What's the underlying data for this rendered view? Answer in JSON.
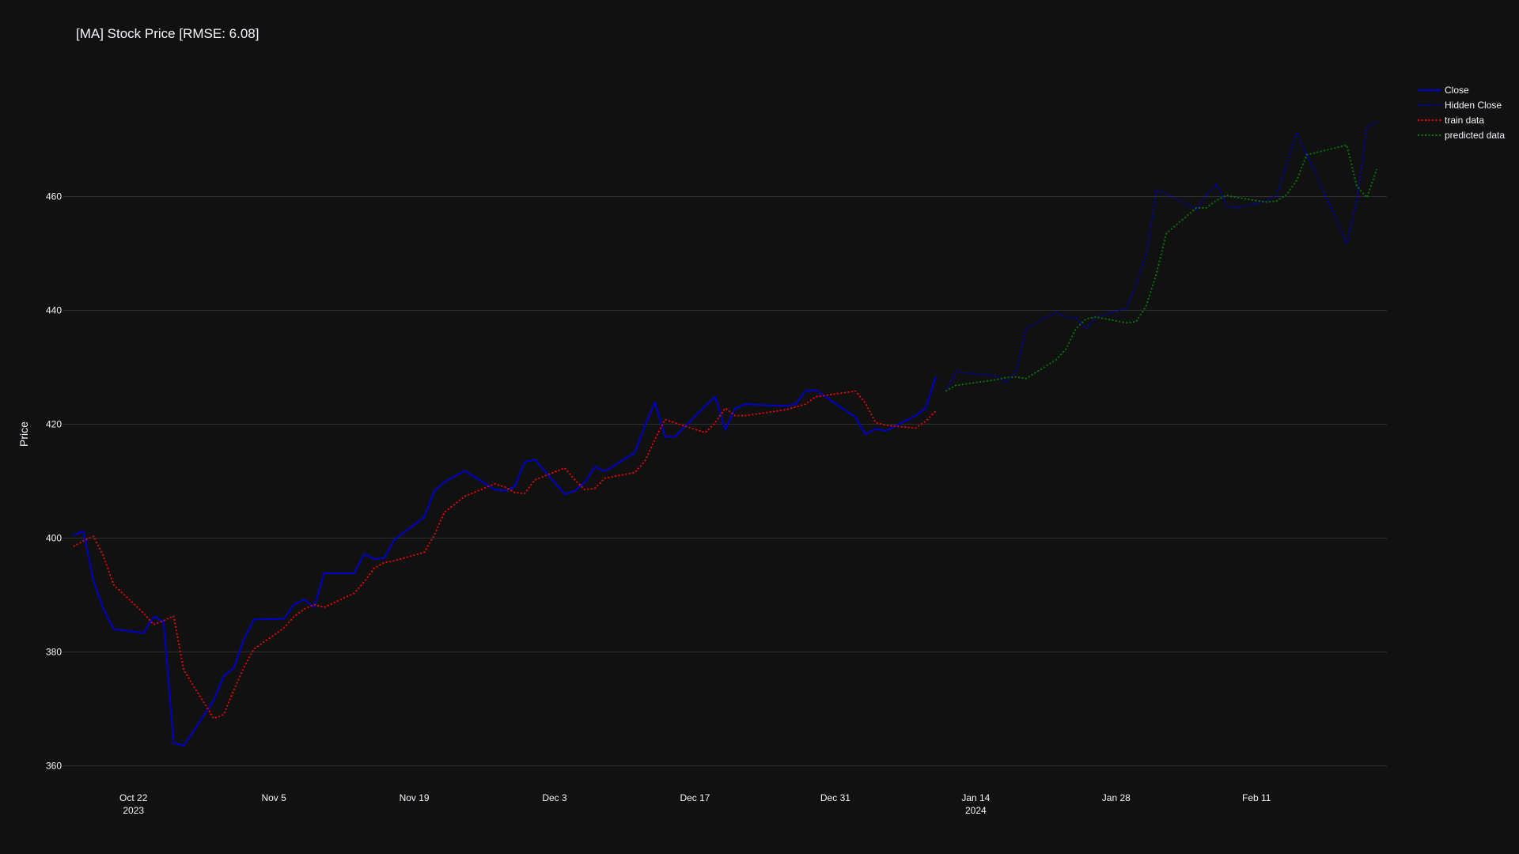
{
  "chart_data": {
    "type": "line",
    "title": "[MA] Stock Price [RMSE: 6.08]",
    "xlabel": "",
    "ylabel": "Price",
    "ylim": [
      357,
      482
    ],
    "xlim": [
      "2023-10-15",
      "2024-02-24"
    ],
    "grid": true,
    "legend_position": "top-right",
    "y_ticks": [
      360,
      380,
      400,
      420,
      440,
      460
    ],
    "x_ticks": [
      {
        "date": "2023-10-22",
        "label": "Oct 22",
        "sublabel": "2023"
      },
      {
        "date": "2023-11-05",
        "label": "Nov 5",
        "sublabel": ""
      },
      {
        "date": "2023-11-19",
        "label": "Nov 19",
        "sublabel": ""
      },
      {
        "date": "2023-12-03",
        "label": "Dec 3",
        "sublabel": ""
      },
      {
        "date": "2023-12-17",
        "label": "Dec 17",
        "sublabel": ""
      },
      {
        "date": "2023-12-31",
        "label": "Dec 31",
        "sublabel": ""
      },
      {
        "date": "2024-01-14",
        "label": "Jan 14",
        "sublabel": "2024"
      },
      {
        "date": "2024-01-28",
        "label": "Jan 28",
        "sublabel": ""
      },
      {
        "date": "2024-02-11",
        "label": "Feb 11",
        "sublabel": ""
      }
    ],
    "series": [
      {
        "name": "Close",
        "color": "#0000cc",
        "dash": "solid",
        "points": [
          [
            "2023-10-16",
            400.5
          ],
          [
            "2023-10-17",
            401.2
          ],
          [
            "2023-10-18",
            392.5
          ],
          [
            "2023-10-19",
            387.5
          ],
          [
            "2023-10-20",
            384.0
          ],
          [
            "2023-10-23",
            383.3
          ],
          [
            "2023-10-24",
            386.2
          ],
          [
            "2023-10-25",
            385.3
          ],
          [
            "2023-10-26",
            364.0
          ],
          [
            "2023-10-27",
            363.5
          ],
          [
            "2023-10-30",
            371.5
          ],
          [
            "2023-10-31",
            375.8
          ],
          [
            "2023-11-01",
            377.2
          ],
          [
            "2023-11-02",
            382.2
          ],
          [
            "2023-11-03",
            385.7
          ],
          [
            "2023-11-06",
            385.8
          ],
          [
            "2023-11-07",
            388.3
          ],
          [
            "2023-11-08",
            389.2
          ],
          [
            "2023-11-09",
            387.8
          ],
          [
            "2023-11-10",
            393.8
          ],
          [
            "2023-11-13",
            393.8
          ],
          [
            "2023-11-14",
            397.2
          ],
          [
            "2023-11-15",
            396.3
          ],
          [
            "2023-11-16",
            396.5
          ],
          [
            "2023-11-17",
            399.7
          ],
          [
            "2023-11-20",
            403.7
          ],
          [
            "2023-11-21",
            408.3
          ],
          [
            "2023-11-22",
            409.8
          ],
          [
            "2023-11-24",
            411.8
          ],
          [
            "2023-11-27",
            408.5
          ],
          [
            "2023-11-28",
            408.3
          ],
          [
            "2023-11-29",
            409.0
          ],
          [
            "2023-11-30",
            413.3
          ],
          [
            "2023-12-01",
            413.8
          ],
          [
            "2023-12-04",
            407.7
          ],
          [
            "2023-12-05",
            408.3
          ],
          [
            "2023-12-06",
            409.8
          ],
          [
            "2023-12-07",
            412.5
          ],
          [
            "2023-12-08",
            411.7
          ],
          [
            "2023-12-11",
            415.0
          ],
          [
            "2023-12-12",
            419.8
          ],
          [
            "2023-12-13",
            423.8
          ],
          [
            "2023-12-14",
            417.8
          ],
          [
            "2023-12-15",
            417.8
          ],
          [
            "2023-12-18",
            423.2
          ],
          [
            "2023-12-19",
            424.8
          ],
          [
            "2023-12-20",
            419.0
          ],
          [
            "2023-12-21",
            422.8
          ],
          [
            "2023-12-22",
            423.5
          ],
          [
            "2023-12-26",
            423.2
          ],
          [
            "2023-12-27",
            423.5
          ],
          [
            "2023-12-28",
            425.8
          ],
          [
            "2023-12-29",
            426.0
          ],
          [
            "2024-01-02",
            421.2
          ],
          [
            "2024-01-03",
            418.2
          ],
          [
            "2024-01-04",
            419.2
          ],
          [
            "2024-01-05",
            418.8
          ],
          [
            "2024-01-08",
            421.5
          ],
          [
            "2024-01-09",
            422.8
          ],
          [
            "2024-01-10",
            428.3
          ]
        ]
      },
      {
        "name": "Hidden Close",
        "color": "#0000cc",
        "dash": "dot",
        "points": [
          [
            "2024-01-11",
            425.8
          ],
          [
            "2024-01-12",
            429.2
          ],
          [
            "2024-01-16",
            428.5
          ],
          [
            "2024-01-17",
            427.3
          ],
          [
            "2024-01-18",
            429.2
          ],
          [
            "2024-01-19",
            436.8
          ],
          [
            "2024-01-22",
            439.7
          ],
          [
            "2024-01-23",
            438.8
          ],
          [
            "2024-01-24",
            438.6
          ],
          [
            "2024-01-25",
            436.8
          ],
          [
            "2024-01-26",
            438.8
          ],
          [
            "2024-01-29",
            440.3
          ],
          [
            "2024-01-30",
            444.7
          ],
          [
            "2024-01-31",
            449.8
          ],
          [
            "2024-02-01",
            461.2
          ],
          [
            "2024-02-02",
            460.5
          ],
          [
            "2024-02-05",
            457.7
          ],
          [
            "2024-02-06",
            460.3
          ],
          [
            "2024-02-07",
            462.2
          ],
          [
            "2024-02-08",
            458.3
          ],
          [
            "2024-02-09",
            458.0
          ],
          [
            "2024-02-12",
            459.2
          ],
          [
            "2024-02-13",
            460.3
          ],
          [
            "2024-02-14",
            465.7
          ],
          [
            "2024-02-15",
            471.3
          ],
          [
            "2024-02-16",
            467.3
          ],
          [
            "2024-02-20",
            451.8
          ],
          [
            "2024-02-21",
            459.3
          ],
          [
            "2024-02-22",
            472.2
          ],
          [
            "2024-02-23",
            473.2
          ]
        ]
      },
      {
        "name": "train data",
        "color": "#ff0000",
        "dash": "dot",
        "points": [
          [
            "2023-10-16",
            398.5
          ],
          [
            "2023-10-17",
            399.5
          ],
          [
            "2023-10-18",
            400.3
          ],
          [
            "2023-10-19",
            396.8
          ],
          [
            "2023-10-20",
            391.8
          ],
          [
            "2023-10-23",
            386.8
          ],
          [
            "2023-10-24",
            384.8
          ],
          [
            "2023-10-25",
            385.5
          ],
          [
            "2023-10-26",
            386.3
          ],
          [
            "2023-10-27",
            376.8
          ],
          [
            "2023-10-30",
            368.3
          ],
          [
            "2023-10-31",
            369.0
          ],
          [
            "2023-11-01",
            373.3
          ],
          [
            "2023-11-02",
            377.2
          ],
          [
            "2023-11-03",
            380.5
          ],
          [
            "2023-11-06",
            384.2
          ],
          [
            "2023-11-07",
            386.2
          ],
          [
            "2023-11-08",
            387.5
          ],
          [
            "2023-11-09",
            388.3
          ],
          [
            "2023-11-10",
            387.8
          ],
          [
            "2023-11-13",
            390.3
          ],
          [
            "2023-11-14",
            392.3
          ],
          [
            "2023-11-15",
            394.7
          ],
          [
            "2023-11-16",
            395.7
          ],
          [
            "2023-11-17",
            396.0
          ],
          [
            "2023-11-20",
            397.5
          ],
          [
            "2023-11-21",
            400.5
          ],
          [
            "2023-11-22",
            404.5
          ],
          [
            "2023-11-24",
            407.3
          ],
          [
            "2023-11-27",
            409.5
          ],
          [
            "2023-11-28",
            409.0
          ],
          [
            "2023-11-29",
            408.0
          ],
          [
            "2023-11-30",
            407.8
          ],
          [
            "2023-12-01",
            410.2
          ],
          [
            "2023-12-04",
            412.3
          ],
          [
            "2023-12-05",
            410.2
          ],
          [
            "2023-12-06",
            408.5
          ],
          [
            "2023-12-07",
            408.7
          ],
          [
            "2023-12-08",
            410.5
          ],
          [
            "2023-12-11",
            411.5
          ],
          [
            "2023-12-12",
            413.5
          ],
          [
            "2023-12-13",
            417.3
          ],
          [
            "2023-12-14",
            420.8
          ],
          [
            "2023-12-18",
            418.5
          ],
          [
            "2023-12-19",
            420.2
          ],
          [
            "2023-12-20",
            422.8
          ],
          [
            "2023-12-21",
            421.5
          ],
          [
            "2023-12-22",
            421.5
          ],
          [
            "2023-12-26",
            422.5
          ],
          [
            "2023-12-27",
            423.0
          ],
          [
            "2023-12-28",
            423.5
          ],
          [
            "2023-12-29",
            424.8
          ],
          [
            "2024-01-02",
            425.8
          ],
          [
            "2024-01-03",
            423.7
          ],
          [
            "2024-01-04",
            420.3
          ],
          [
            "2024-01-05",
            419.8
          ],
          [
            "2024-01-08",
            419.3
          ],
          [
            "2024-01-09",
            420.5
          ],
          [
            "2024-01-10",
            422.3
          ]
        ]
      },
      {
        "name": "predicted data",
        "color": "#008000",
        "dash": "dot",
        "points": [
          [
            "2024-01-11",
            425.8
          ],
          [
            "2024-01-12",
            426.8
          ],
          [
            "2024-01-16",
            427.8
          ],
          [
            "2024-01-17",
            428.2
          ],
          [
            "2024-01-18",
            428.3
          ],
          [
            "2024-01-19",
            428.0
          ],
          [
            "2024-01-22",
            431.3
          ],
          [
            "2024-01-23",
            433.2
          ],
          [
            "2024-01-24",
            436.8
          ],
          [
            "2024-01-25",
            438.5
          ],
          [
            "2024-01-26",
            438.8
          ],
          [
            "2024-01-29",
            437.8
          ],
          [
            "2024-01-30",
            438.0
          ],
          [
            "2024-01-31",
            440.8
          ],
          [
            "2024-02-01",
            446.3
          ],
          [
            "2024-02-02",
            453.5
          ],
          [
            "2024-02-05",
            458.0
          ],
          [
            "2024-02-06",
            458.0
          ],
          [
            "2024-02-07",
            459.3
          ],
          [
            "2024-02-08",
            460.2
          ],
          [
            "2024-02-09",
            459.8
          ],
          [
            "2024-02-12",
            459.0
          ],
          [
            "2024-02-13",
            459.2
          ],
          [
            "2024-02-14",
            460.3
          ],
          [
            "2024-02-15",
            462.8
          ],
          [
            "2024-02-16",
            467.3
          ],
          [
            "2024-02-20",
            469.0
          ],
          [
            "2024-02-21",
            461.8
          ],
          [
            "2024-02-22",
            459.8
          ],
          [
            "2024-02-23",
            464.8
          ]
        ]
      }
    ]
  }
}
